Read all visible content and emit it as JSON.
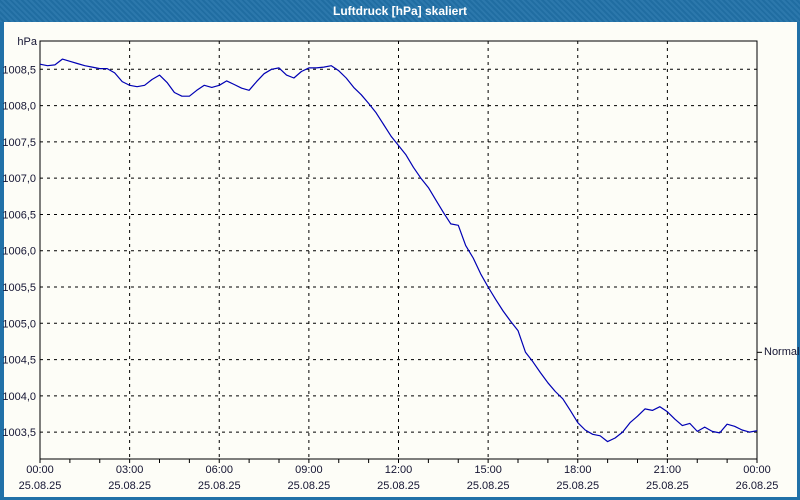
{
  "window": {
    "title": "Luftdruck [hPa] skaliert"
  },
  "colors": {
    "titlebar_bg": "#2171a8",
    "titlebar_text": "#ffffff",
    "frame": "#2171a8",
    "chart_bg": "#fdfdf7",
    "plot_border": "#000000",
    "gridline": "#000000",
    "series_line": "#0000b4",
    "axis_label": "#141432"
  },
  "chart_data": {
    "type": "line",
    "title": "Luftdruck [hPa] skaliert",
    "unit_label": "hPa",
    "legend": "none",
    "grid": "dashed",
    "y_axis": {
      "min": 1003.13,
      "max": 1008.89,
      "ticks": [
        {
          "value": 1008.5,
          "label": "1008,5"
        },
        {
          "value": 1008.0,
          "label": "1008,0"
        },
        {
          "value": 1007.5,
          "label": "1007,5"
        },
        {
          "value": 1007.0,
          "label": "1007,0"
        },
        {
          "value": 1006.5,
          "label": "1006,5"
        },
        {
          "value": 1006.0,
          "label": "1006,0"
        },
        {
          "value": 1005.5,
          "label": "1005,5"
        },
        {
          "value": 1005.0,
          "label": "1005,0"
        },
        {
          "value": 1004.5,
          "label": "1004,5"
        },
        {
          "value": 1004.0,
          "label": "1004,0"
        },
        {
          "value": 1003.5,
          "label": "1003,5"
        }
      ]
    },
    "x_axis": {
      "min_hours": 0,
      "max_hours": 24,
      "minor_tick_interval_hours": 1,
      "ticks": [
        {
          "hours": 0,
          "time": "00:00",
          "date": "25.08.25"
        },
        {
          "hours": 3,
          "time": "03:00",
          "date": "25.08.25"
        },
        {
          "hours": 6,
          "time": "06:00",
          "date": "25.08.25"
        },
        {
          "hours": 9,
          "time": "09:00",
          "date": "25.08.25"
        },
        {
          "hours": 12,
          "time": "12:00",
          "date": "25.08.25"
        },
        {
          "hours": 15,
          "time": "15:00",
          "date": "25.08.25"
        },
        {
          "hours": 18,
          "time": "18:00",
          "date": "25.08.25"
        },
        {
          "hours": 21,
          "time": "21:00",
          "date": "25.08.25"
        },
        {
          "hours": 24,
          "time": "00:00",
          "date": "26.08.25"
        }
      ]
    },
    "normal_marker": {
      "value": 1004.6,
      "label": "Normal"
    },
    "series": [
      {
        "name": "Luftdruck",
        "color": "#0000b4",
        "points": [
          [
            0,
            1008.57
          ],
          [
            0.25,
            1008.55
          ],
          [
            0.5,
            1008.56
          ],
          [
            0.75,
            1008.64
          ],
          [
            1,
            1008.61
          ],
          [
            1.25,
            1008.58
          ],
          [
            1.5,
            1008.55
          ],
          [
            1.75,
            1008.53
          ],
          [
            2,
            1008.51
          ],
          [
            2.25,
            1008.51
          ],
          [
            2.5,
            1008.45
          ],
          [
            2.75,
            1008.33
          ],
          [
            3,
            1008.28
          ],
          [
            3.25,
            1008.26
          ],
          [
            3.5,
            1008.28
          ],
          [
            3.75,
            1008.36
          ],
          [
            4,
            1008.42
          ],
          [
            4.25,
            1008.32
          ],
          [
            4.5,
            1008.18
          ],
          [
            4.75,
            1008.13
          ],
          [
            5,
            1008.13
          ],
          [
            5.25,
            1008.21
          ],
          [
            5.5,
            1008.28
          ],
          [
            5.75,
            1008.25
          ],
          [
            6,
            1008.28
          ],
          [
            6.25,
            1008.34
          ],
          [
            6.5,
            1008.29
          ],
          [
            6.75,
            1008.24
          ],
          [
            7,
            1008.21
          ],
          [
            7.25,
            1008.33
          ],
          [
            7.5,
            1008.44
          ],
          [
            7.75,
            1008.5
          ],
          [
            8,
            1008.52
          ],
          [
            8.25,
            1008.42
          ],
          [
            8.5,
            1008.38
          ],
          [
            8.75,
            1008.47
          ],
          [
            9,
            1008.52
          ],
          [
            9.25,
            1008.52
          ],
          [
            9.5,
            1008.53
          ],
          [
            9.75,
            1008.55
          ],
          [
            10,
            1008.48
          ],
          [
            10.25,
            1008.38
          ],
          [
            10.5,
            1008.25
          ],
          [
            10.75,
            1008.15
          ],
          [
            11,
            1008.03
          ],
          [
            11.25,
            1007.9
          ],
          [
            11.5,
            1007.74
          ],
          [
            11.75,
            1007.58
          ],
          [
            12,
            1007.45
          ],
          [
            12.25,
            1007.32
          ],
          [
            12.5,
            1007.15
          ],
          [
            12.75,
            1007.0
          ],
          [
            13,
            1006.87
          ],
          [
            13.25,
            1006.7
          ],
          [
            13.5,
            1006.53
          ],
          [
            13.75,
            1006.37
          ],
          [
            14,
            1006.35
          ],
          [
            14.25,
            1006.07
          ],
          [
            14.5,
            1005.9
          ],
          [
            14.75,
            1005.68
          ],
          [
            15,
            1005.5
          ],
          [
            15.25,
            1005.33
          ],
          [
            15.5,
            1005.17
          ],
          [
            15.75,
            1005.03
          ],
          [
            16,
            1004.9
          ],
          [
            16.25,
            1004.6
          ],
          [
            16.5,
            1004.47
          ],
          [
            16.75,
            1004.32
          ],
          [
            17,
            1004.18
          ],
          [
            17.25,
            1004.06
          ],
          [
            17.5,
            1003.96
          ],
          [
            17.75,
            1003.8
          ],
          [
            18,
            1003.63
          ],
          [
            18.25,
            1003.53
          ],
          [
            18.5,
            1003.47
          ],
          [
            18.75,
            1003.45
          ],
          [
            19,
            1003.37
          ],
          [
            19.25,
            1003.42
          ],
          [
            19.5,
            1003.5
          ],
          [
            19.75,
            1003.63
          ],
          [
            20,
            1003.72
          ],
          [
            20.25,
            1003.82
          ],
          [
            20.5,
            1003.8
          ],
          [
            20.75,
            1003.85
          ],
          [
            21,
            1003.78
          ],
          [
            21.25,
            1003.68
          ],
          [
            21.5,
            1003.59
          ],
          [
            21.75,
            1003.62
          ],
          [
            22,
            1003.51
          ],
          [
            22.25,
            1003.57
          ],
          [
            22.5,
            1003.51
          ],
          [
            22.75,
            1003.49
          ],
          [
            23,
            1003.61
          ],
          [
            23.25,
            1003.58
          ],
          [
            23.5,
            1003.53
          ],
          [
            23.75,
            1003.5
          ],
          [
            24,
            1003.52
          ]
        ]
      }
    ]
  }
}
